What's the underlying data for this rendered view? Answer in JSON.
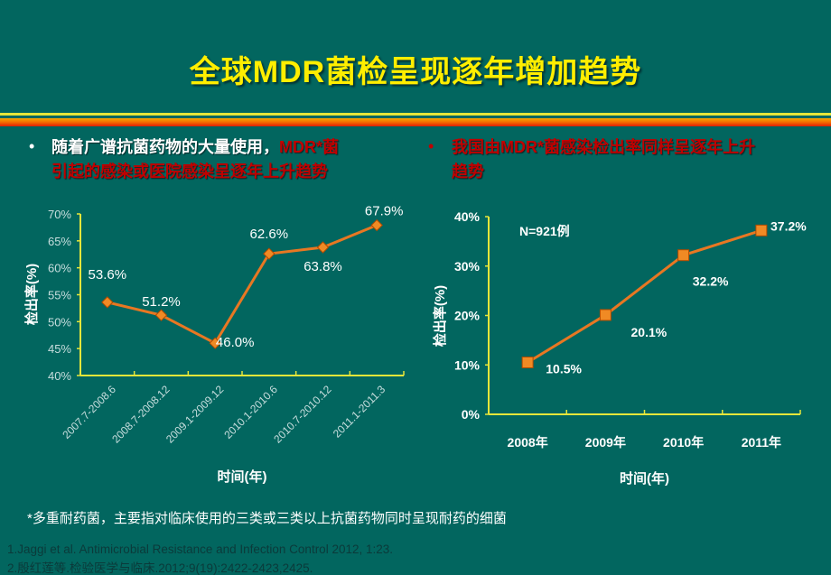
{
  "title": "全球MDR菌检呈现逐年增加趋势",
  "bullets": {
    "left": {
      "white": "随着广谱抗菌药物的大量使用，",
      "red1": "MDR*菌",
      "red2": "引起的感染或医院感染呈逐年上升趋势"
    },
    "right": {
      "red1": "我国由MDR*菌感染检出率同样呈逐年上升",
      "red2": "趋势"
    },
    "marker": "•"
  },
  "colors": {
    "background": "#02665f",
    "title": "#ffee00",
    "accent_red": "#c00000",
    "series": "#e87722",
    "axis": "#e6e63a"
  },
  "chart_data": [
    {
      "type": "line",
      "categories": [
        "2007.7-2008.6",
        "2008.7-2008.12",
        "2009.1-2009.12",
        "2010.1-2010.6",
        "2010.7-2010.12",
        "2011.1-2011.3"
      ],
      "values": [
        53.6,
        51.2,
        46.0,
        62.6,
        63.8,
        67.9
      ],
      "data_labels": [
        "53.6%",
        "51.2%",
        "46.0%",
        "62.6%",
        "63.8%",
        "67.9%"
      ],
      "xlabel": "时间(年)",
      "ylabel": "检出率(%)",
      "ylim": [
        40,
        70
      ],
      "yticks": [
        "40%",
        "45%",
        "50%",
        "55%",
        "60%",
        "65%",
        "70%"
      ],
      "marker": "diamond",
      "grid": false
    },
    {
      "type": "line",
      "categories": [
        "2008年",
        "2009年",
        "2010年",
        "2011年"
      ],
      "values": [
        10.5,
        20.1,
        32.2,
        37.2
      ],
      "data_labels": [
        "10.5%",
        "20.1%",
        "32.2%",
        "37.2%"
      ],
      "annotation": "N=921例",
      "xlabel": "时间(年)",
      "ylabel": "检出率(%)",
      "ylim": [
        0,
        40
      ],
      "yticks": [
        "0%",
        "10%",
        "20%",
        "30%",
        "40%"
      ],
      "marker": "square",
      "grid": false
    }
  ],
  "footnote": "*多重耐药菌，主要指对临床使用的三类或三类以上抗菌药物同时呈现耐药的细菌",
  "references": [
    "1.Jaggi et al. Antimicrobial Resistance and Infection Control 2012, 1:23.",
    "2.殷红莲等.检验医学与临床.2012;9(19):2422-2423,2425."
  ]
}
